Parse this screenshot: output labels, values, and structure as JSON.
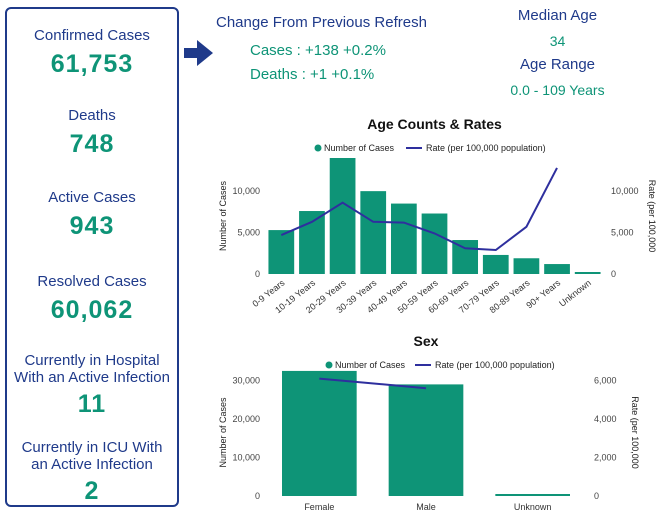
{
  "stats": {
    "confirmed_label": "Confirmed Cases",
    "confirmed_value": "61,753",
    "deaths_label": "Deaths",
    "deaths_value": "748",
    "active_label": "Active Cases",
    "active_value": "943",
    "resolved_label": "Resolved Cases",
    "resolved_value": "60,062",
    "hospital_label_1": "Currently in Hospital",
    "hospital_label_2": "With an Active Infection",
    "hospital_value": "11",
    "icu_label_1": "Currently in ICU With",
    "icu_label_2": "an Active Infection",
    "icu_value": "2"
  },
  "change": {
    "title": "Change From Previous Refresh",
    "cases": "Cases : +138 +0.2%",
    "deaths": "Deaths : +1 +0.1%"
  },
  "age": {
    "median_label": "Median Age",
    "median_value": "34",
    "range_label": "Age Range",
    "range_value": "0.0 - 109 Years"
  },
  "colors": {
    "bar": "#0e9477",
    "line": "#2e2f9e",
    "label": "#1f3a8a",
    "value": "#0e9477"
  },
  "chart_data": [
    {
      "type": "bar",
      "title": "Age Counts & Rates",
      "legend_position": "top",
      "categories": [
        "0-9 Years",
        "10-19 Years",
        "20-29 Years",
        "30-39 Years",
        "40-49 Years",
        "50-59 Years",
        "60-69 Years",
        "70-79 Years",
        "80-89 Years",
        "90+ Years",
        "Unknown"
      ],
      "ylabel": "Number of Cases",
      "y2label": "Rate (per 100,000",
      "ylim": [
        0,
        14000
      ],
      "y2lim": [
        0,
        14000
      ],
      "yticks": [
        0,
        5000,
        10000
      ],
      "yticklabels": [
        "0",
        "5,000",
        "10,000"
      ],
      "y2ticks": [
        0,
        5000,
        10000
      ],
      "y2ticklabels": [
        "0",
        "5,000",
        "10,000"
      ],
      "series": [
        {
          "name": "Number of Cases",
          "kind": "bar",
          "axis": "left",
          "values": [
            5300,
            7600,
            14000,
            10000,
            8500,
            7300,
            4100,
            2300,
            1900,
            1200,
            100
          ]
        },
        {
          "name": "Rate (per 100,000 population)",
          "kind": "line",
          "axis": "right",
          "values": [
            4700,
            6300,
            8600,
            6300,
            6200,
            4900,
            3100,
            2900,
            5700,
            12800,
            null
          ]
        }
      ]
    },
    {
      "type": "bar",
      "title": "Sex",
      "legend_position": "top",
      "categories": [
        "Female",
        "Male",
        "Unknown"
      ],
      "ylabel": "Number of Cases",
      "y2label": "Rate (per 100,000",
      "ylim": [
        0,
        33000
      ],
      "y2lim": [
        0,
        6600
      ],
      "yticks": [
        0,
        10000,
        20000,
        30000
      ],
      "yticklabels": [
        "0",
        "10,000",
        "20,000",
        "30,000"
      ],
      "y2ticks": [
        0,
        2000,
        4000,
        6000
      ],
      "y2ticklabels": [
        "0",
        "2,000",
        "4,000",
        "6,000"
      ],
      "series": [
        {
          "name": "Number of Cases",
          "kind": "bar",
          "axis": "left",
          "values": [
            32500,
            29000,
            300
          ]
        },
        {
          "name": "Rate (per 100,000 population)",
          "kind": "line",
          "axis": "right",
          "values": [
            6100,
            5600,
            null
          ]
        }
      ]
    }
  ]
}
